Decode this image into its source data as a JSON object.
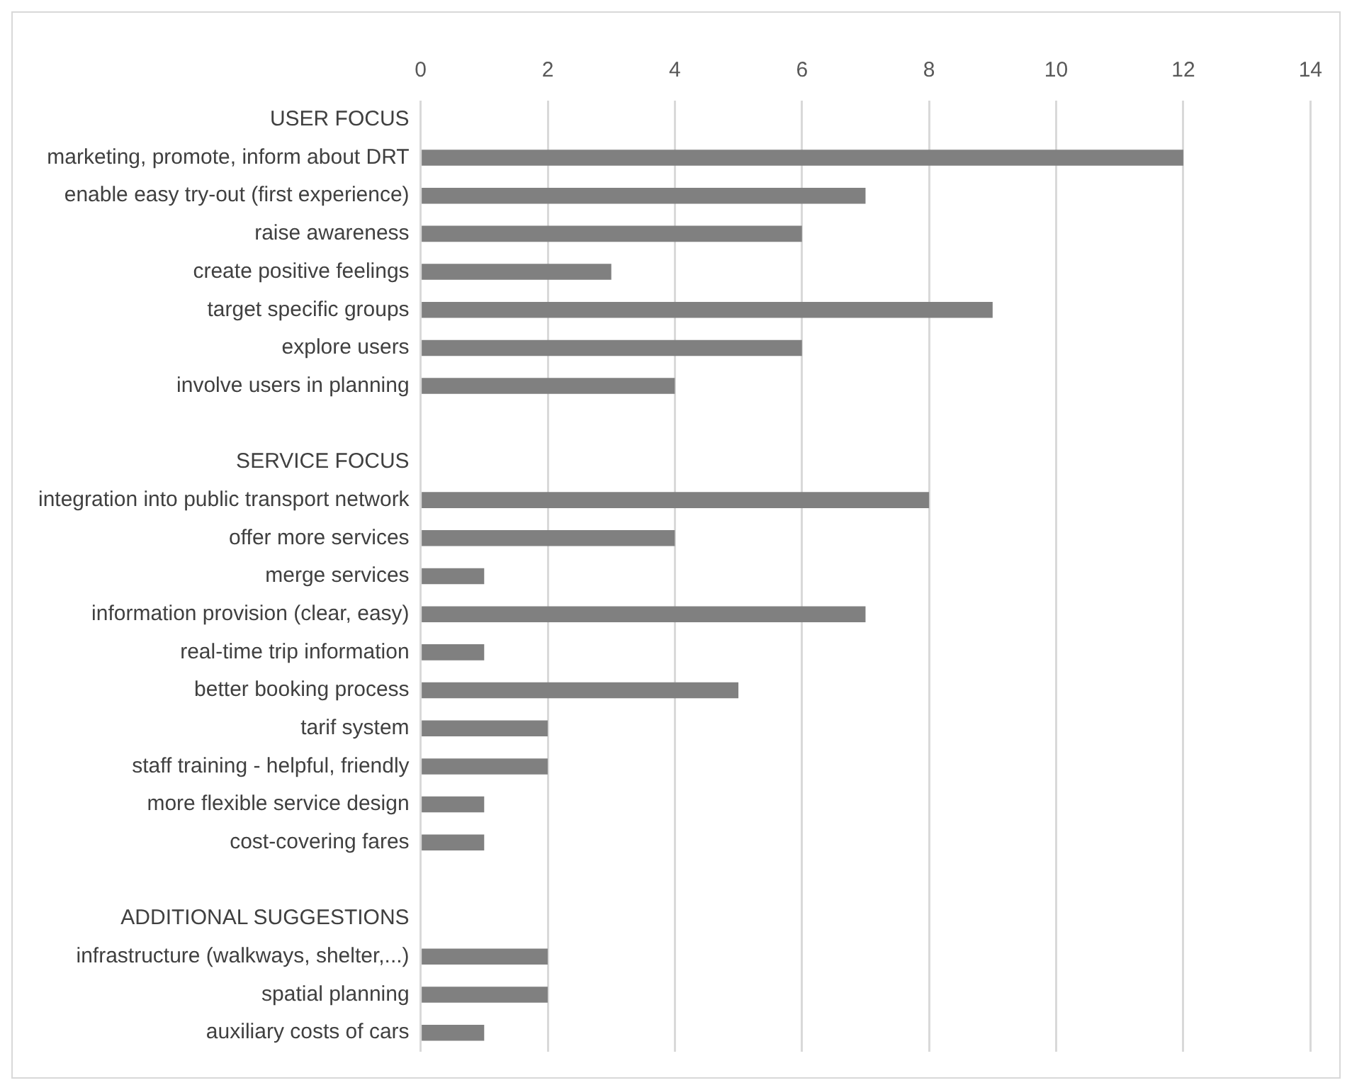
{
  "chart_data": {
    "type": "bar",
    "orientation": "horizontal",
    "categories": [
      "USER FOCUS",
      "marketing, promote, inform about DRT",
      "enable easy try-out (first experience)",
      "raise awareness",
      "create positive feelings",
      "target specific groups",
      "explore users",
      "involve users in planning",
      null,
      "SERVICE FOCUS",
      "integration into public transport network",
      "offer more services",
      "merge services",
      "information provision (clear, easy)",
      "real-time trip information",
      "better booking process",
      "tarif system",
      "staff training - helpful, friendly",
      "more flexible service design",
      "cost-covering fares",
      null,
      "ADDITIONAL SUGGESTIONS",
      "infrastructure (walkways, shelter,...)",
      "spatial planning",
      "auxiliary costs of cars"
    ],
    "values": [
      null,
      12,
      7,
      6,
      3,
      9,
      6,
      4,
      null,
      null,
      8,
      4,
      1,
      7,
      1,
      5,
      2,
      2,
      1,
      1,
      null,
      null,
      2,
      2,
      1
    ],
    "color": "#808080",
    "xlim": [
      0,
      14
    ],
    "xticks": [
      0,
      2,
      4,
      6,
      8,
      10,
      12,
      14
    ],
    "grid": "x",
    "legend": false
  }
}
